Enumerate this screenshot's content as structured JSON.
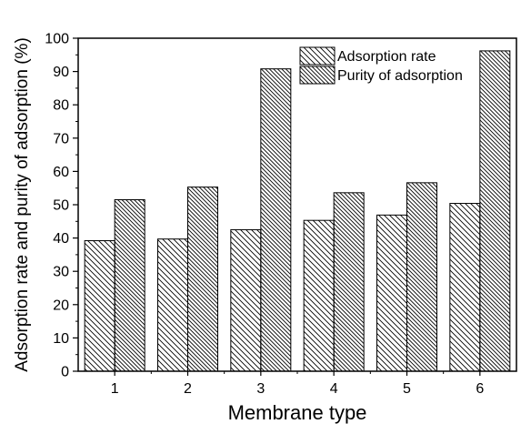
{
  "chart_data": {
    "type": "bar",
    "categories": [
      "1",
      "2",
      "3",
      "4",
      "5",
      "6"
    ],
    "series": [
      {
        "name": "Adsorption rate",
        "values": [
          39.2,
          39.7,
          42.5,
          45.3,
          46.9,
          50.4
        ],
        "hatch": "backslash"
      },
      {
        "name": "Purity of adsorption",
        "values": [
          51.5,
          55.3,
          90.8,
          53.6,
          56.6,
          96.2
        ],
        "hatch": "backslash-dense"
      }
    ],
    "xlabel": "Membrane type",
    "ylabel": "Adsorption rate and purity of adsorption (%)",
    "ylim": [
      0,
      100
    ],
    "yticks": [
      0,
      10,
      20,
      30,
      40,
      50,
      60,
      70,
      80,
      90,
      100
    ],
    "legend_position": "top-right",
    "grid": false,
    "colors": {
      "stroke": "#000000",
      "fill": "#ffffff"
    }
  }
}
